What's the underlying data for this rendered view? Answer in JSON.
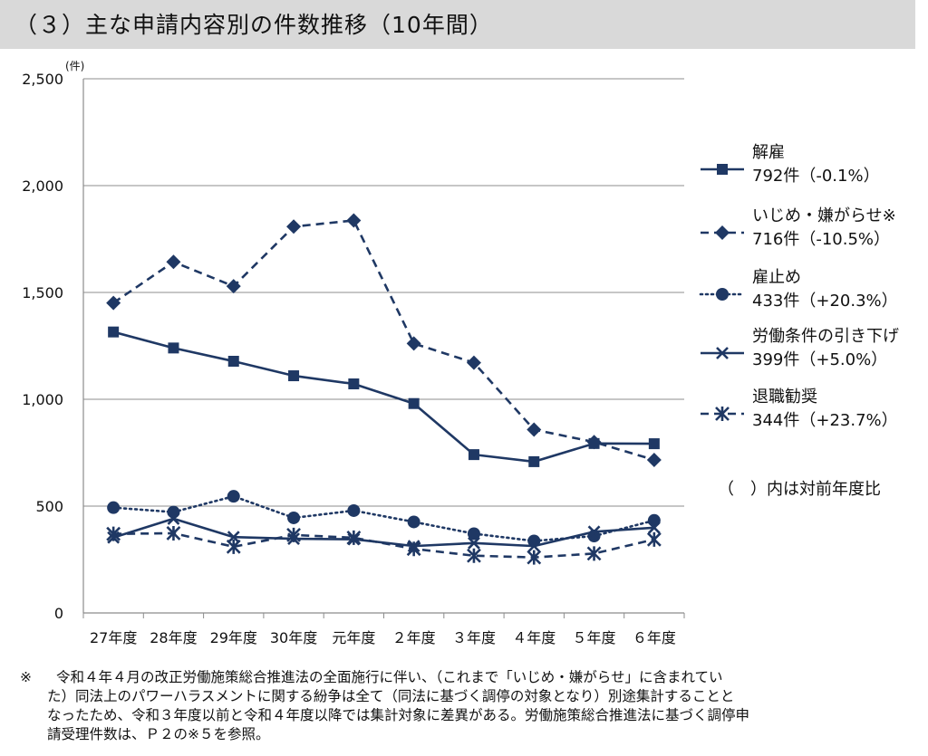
{
  "title": "（３）主な申請内容別の件数推移（10年間）",
  "chart_data": {
    "type": "line",
    "y_unit": "(件)",
    "ylim": [
      0,
      2500
    ],
    "yticks": [
      0,
      500,
      1000,
      1500,
      2000,
      2500
    ],
    "ytick_labels": [
      "0",
      "500",
      "1,000",
      "1,500",
      "2,000",
      "2,500"
    ],
    "categories": [
      "27年度",
      "28年度",
      "29年度",
      "30年度",
      "元年度",
      "２年度",
      "３年度",
      "４年度",
      "５年度",
      "６年度"
    ],
    "series": [
      {
        "name": "解雇",
        "detail": "792件（-0.1%）",
        "style": "solid",
        "marker": "square",
        "values": [
          1315,
          1240,
          1178,
          1110,
          1072,
          980,
          741,
          708,
          793,
          792
        ]
      },
      {
        "name": "いじめ・嫌がらせ※",
        "detail": "716件（-10.5%）",
        "style": "dashed",
        "marker": "diamond",
        "values": [
          1451,
          1643,
          1529,
          1808,
          1837,
          1261,
          1171,
          858,
          800,
          716
        ]
      },
      {
        "name": "雇止め",
        "detail": "433件（+20.3%）",
        "style": "dotted",
        "marker": "circle",
        "values": [
          493,
          472,
          546,
          445,
          479,
          426,
          371,
          337,
          360,
          433
        ]
      },
      {
        "name": "労働条件の引き下げ",
        "detail": "399件（+5.0%）",
        "style": "solid",
        "marker": "x",
        "values": [
          353,
          441,
          355,
          347,
          345,
          313,
          327,
          313,
          380,
          399
        ]
      },
      {
        "name": "退職勧奨",
        "detail": "344件（+23.7%）",
        "style": "dashed",
        "marker": "asterisk",
        "values": [
          370,
          373,
          310,
          365,
          352,
          300,
          268,
          260,
          278,
          344
        ]
      }
    ],
    "annotation": "（　）内は対前年度比"
  },
  "colors": {
    "series": "#1f3864",
    "grid": "#8c8c8c",
    "title_bg": "#d9d9d9"
  },
  "note": {
    "mark": "※",
    "lines": [
      "令和４年４月の改正労働施策総合推進法の全面施行に伴い、（これまで「いじめ・嫌がらせ」に含まれてい",
      "た）同法上のパワーハラスメントに関する紛争は全て（同法に基づく調停の対象となり）別途集計することと",
      "なったため、令和３年度以前と令和４年度以降では集計対象に差異がある。労働施策総合推進法に基づく調停申",
      "請受理件数は、Ｐ２の※５を参照。"
    ]
  }
}
